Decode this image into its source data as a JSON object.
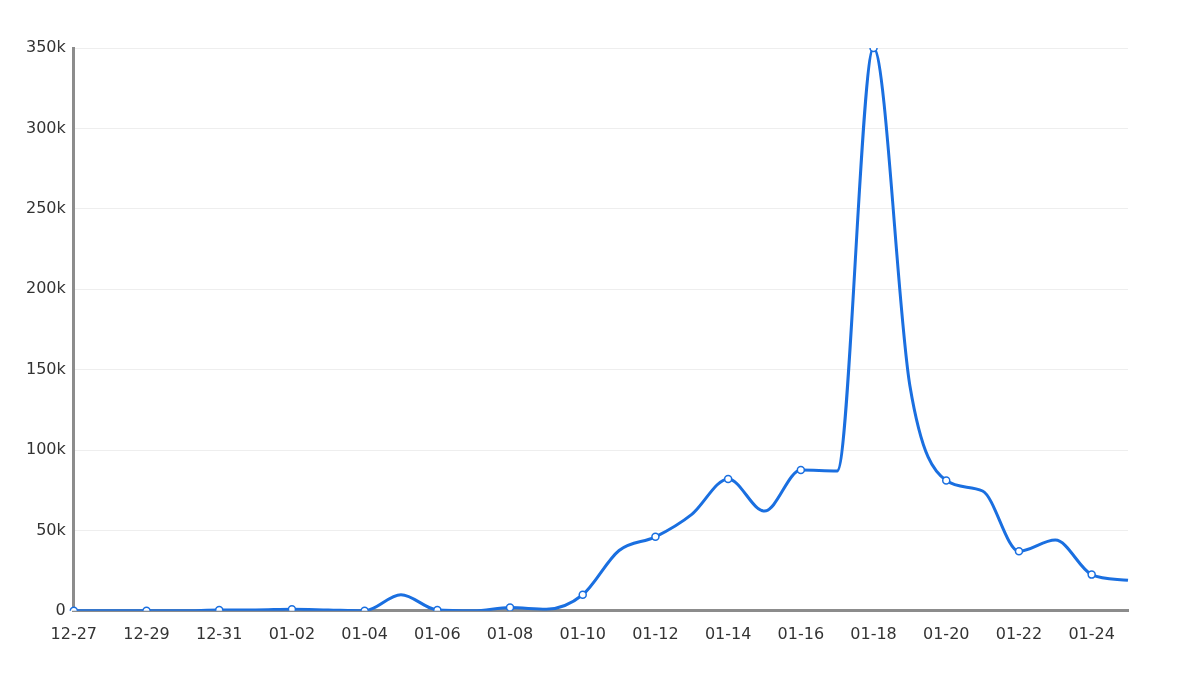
{
  "chart_data": {
    "type": "line",
    "categories": [
      "12-27",
      null,
      "12-29",
      null,
      "12-31",
      null,
      "01-02",
      null,
      "01-04",
      null,
      "01-06",
      null,
      "01-08",
      null,
      "01-10",
      null,
      "01-12",
      null,
      "01-14",
      null,
      "01-16",
      null,
      "01-18",
      null,
      "01-20",
      null,
      "01-22",
      null,
      "01-24",
      null
    ],
    "series": [
      {
        "color": "#1a6fe0",
        "values": [
          0,
          0,
          0,
          0,
          500,
          500,
          1000,
          500,
          0,
          10000,
          500,
          0,
          2000,
          1000,
          10000,
          37500,
          46000,
          60000,
          82000,
          62000,
          87500,
          87000,
          350000,
          140000,
          81000,
          74500,
          37000,
          44000,
          22500,
          19000
        ]
      }
    ],
    "ylim": [
      0,
      350000
    ],
    "yticks": [
      {
        "value": 0,
        "label": "0"
      },
      {
        "value": 50000,
        "label": "50k"
      },
      {
        "value": 100000,
        "label": "100k"
      },
      {
        "value": 150000,
        "label": "150k"
      },
      {
        "value": 200000,
        "label": "200k"
      },
      {
        "value": 250000,
        "label": "250k"
      },
      {
        "value": 300000,
        "label": "300k"
      },
      {
        "value": 350000,
        "label": "350k"
      }
    ],
    "grid": "y",
    "legend": false,
    "marker": "circle",
    "line_style": "solid"
  }
}
